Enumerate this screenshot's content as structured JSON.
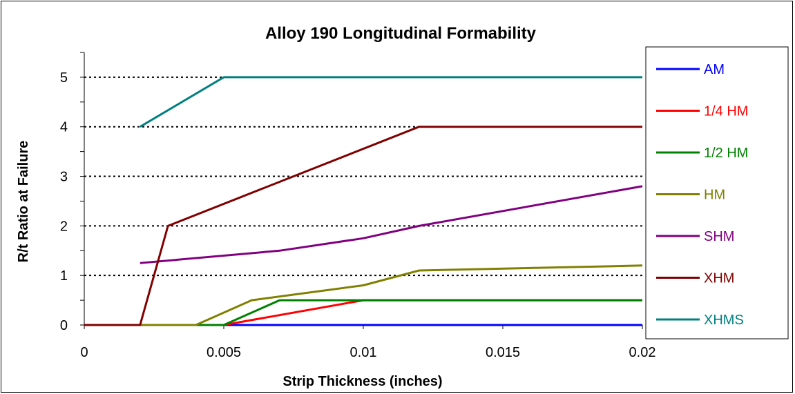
{
  "chart_data": {
    "type": "line",
    "title": "Alloy 190 Longitudinal Formability",
    "xlabel": "Strip Thickness (inches)",
    "ylabel": "R/t Ratio at Failure",
    "xlim": [
      0,
      0.02
    ],
    "ylim": [
      0,
      5.5
    ],
    "x_ticks": [
      "0",
      "0.005",
      "0.01",
      "0.015",
      "0.02"
    ],
    "y_ticks": [
      "0",
      "1",
      "2",
      "3",
      "4",
      "5"
    ],
    "gridlines": [
      1,
      2,
      3,
      4,
      5
    ],
    "grid_style": "dotted horizontal",
    "legend_position": "right",
    "series": [
      {
        "name": "AM",
        "color": "#0000ff",
        "points": [
          [
            0,
            0
          ],
          [
            0.02,
            0
          ]
        ]
      },
      {
        "name": "1/4 HM",
        "color": "#ff0000",
        "points": [
          [
            0,
            0
          ],
          [
            0.005,
            0
          ],
          [
            0.01,
            0.5
          ],
          [
            0.02,
            0.5
          ]
        ]
      },
      {
        "name": "1/2 HM",
        "color": "#008000",
        "points": [
          [
            0,
            0
          ],
          [
            0.005,
            0
          ],
          [
            0.007,
            0.5
          ],
          [
            0.02,
            0.5
          ]
        ]
      },
      {
        "name": "HM",
        "color": "#808000",
        "points": [
          [
            0,
            0
          ],
          [
            0.004,
            0
          ],
          [
            0.006,
            0.5
          ],
          [
            0.01,
            0.8
          ],
          [
            0.012,
            1.1
          ],
          [
            0.02,
            1.2
          ]
        ]
      },
      {
        "name": "SHM",
        "color": "#800080",
        "points": [
          [
            0.002,
            1.25
          ],
          [
            0.007,
            1.5
          ],
          [
            0.01,
            1.75
          ],
          [
            0.012,
            2.0
          ],
          [
            0.02,
            2.8
          ]
        ]
      },
      {
        "name": "XHM",
        "color": "#800000",
        "points": [
          [
            0,
            0
          ],
          [
            0.002,
            0
          ],
          [
            0.003,
            2.0
          ],
          [
            0.012,
            4.0
          ],
          [
            0.02,
            4.0
          ]
        ]
      },
      {
        "name": "XHMS",
        "color": "#008080",
        "points": [
          [
            0.002,
            4.0
          ],
          [
            0.005,
            5.0
          ],
          [
            0.02,
            5.0
          ]
        ]
      }
    ]
  }
}
